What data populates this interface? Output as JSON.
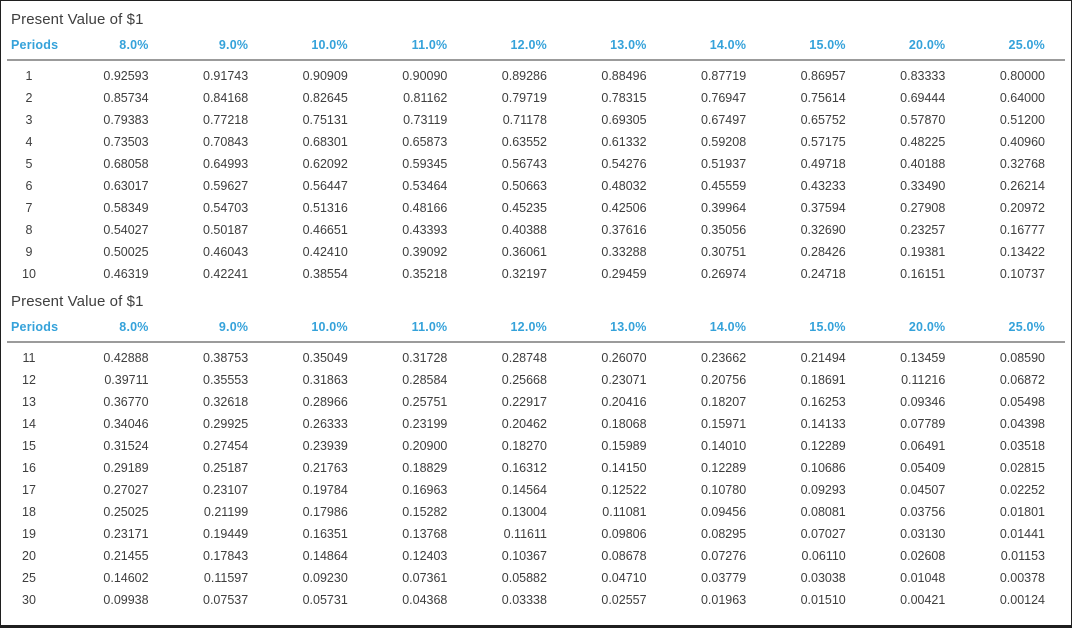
{
  "accent_color": "#35a2da",
  "text_color": "#3e3e3e",
  "tables": [
    {
      "title": "Present Value of $1",
      "columns": [
        "Periods",
        "8.0%",
        "9.0%",
        "10.0%",
        "11.0%",
        "12.0%",
        "13.0%",
        "14.0%",
        "15.0%",
        "20.0%",
        "25.0%"
      ],
      "rows": [
        [
          "1",
          "0.92593",
          "0.91743",
          "0.90909",
          "0.90090",
          "0.89286",
          "0.88496",
          "0.87719",
          "0.86957",
          "0.83333",
          "0.80000"
        ],
        [
          "2",
          "0.85734",
          "0.84168",
          "0.82645",
          "0.81162",
          "0.79719",
          "0.78315",
          "0.76947",
          "0.75614",
          "0.69444",
          "0.64000"
        ],
        [
          "3",
          "0.79383",
          "0.77218",
          "0.75131",
          "0.73119",
          "0.71178",
          "0.69305",
          "0.67497",
          "0.65752",
          "0.57870",
          "0.51200"
        ],
        [
          "4",
          "0.73503",
          "0.70843",
          "0.68301",
          "0.65873",
          "0.63552",
          "0.61332",
          "0.59208",
          "0.57175",
          "0.48225",
          "0.40960"
        ],
        [
          "5",
          "0.68058",
          "0.64993",
          "0.62092",
          "0.59345",
          "0.56743",
          "0.54276",
          "0.51937",
          "0.49718",
          "0.40188",
          "0.32768"
        ],
        [
          "6",
          "0.63017",
          "0.59627",
          "0.56447",
          "0.53464",
          "0.50663",
          "0.48032",
          "0.45559",
          "0.43233",
          "0.33490",
          "0.26214"
        ],
        [
          "7",
          "0.58349",
          "0.54703",
          "0.51316",
          "0.48166",
          "0.45235",
          "0.42506",
          "0.39964",
          "0.37594",
          "0.27908",
          "0.20972"
        ],
        [
          "8",
          "0.54027",
          "0.50187",
          "0.46651",
          "0.43393",
          "0.40388",
          "0.37616",
          "0.35056",
          "0.32690",
          "0.23257",
          "0.16777"
        ],
        [
          "9",
          "0.50025",
          "0.46043",
          "0.42410",
          "0.39092",
          "0.36061",
          "0.33288",
          "0.30751",
          "0.28426",
          "0.19381",
          "0.13422"
        ],
        [
          "10",
          "0.46319",
          "0.42241",
          "0.38554",
          "0.35218",
          "0.32197",
          "0.29459",
          "0.26974",
          "0.24718",
          "0.16151",
          "0.10737"
        ]
      ]
    },
    {
      "title": "Present Value of $1",
      "columns": [
        "Periods",
        "8.0%",
        "9.0%",
        "10.0%",
        "11.0%",
        "12.0%",
        "13.0%",
        "14.0%",
        "15.0%",
        "20.0%",
        "25.0%"
      ],
      "rows": [
        [
          "11",
          "0.42888",
          "0.38753",
          "0.35049",
          "0.31728",
          "0.28748",
          "0.26070",
          "0.23662",
          "0.21494",
          "0.13459",
          "0.08590"
        ],
        [
          "12",
          "0.39711",
          "0.35553",
          "0.31863",
          "0.28584",
          "0.25668",
          "0.23071",
          "0.20756",
          "0.18691",
          "0.11216",
          "0.06872"
        ],
        [
          "13",
          "0.36770",
          "0.32618",
          "0.28966",
          "0.25751",
          "0.22917",
          "0.20416",
          "0.18207",
          "0.16253",
          "0.09346",
          "0.05498"
        ],
        [
          "14",
          "0.34046",
          "0.29925",
          "0.26333",
          "0.23199",
          "0.20462",
          "0.18068",
          "0.15971",
          "0.14133",
          "0.07789",
          "0.04398"
        ],
        [
          "15",
          "0.31524",
          "0.27454",
          "0.23939",
          "0.20900",
          "0.18270",
          "0.15989",
          "0.14010",
          "0.12289",
          "0.06491",
          "0.03518"
        ],
        [
          "16",
          "0.29189",
          "0.25187",
          "0.21763",
          "0.18829",
          "0.16312",
          "0.14150",
          "0.12289",
          "0.10686",
          "0.05409",
          "0.02815"
        ],
        [
          "17",
          "0.27027",
          "0.23107",
          "0.19784",
          "0.16963",
          "0.14564",
          "0.12522",
          "0.10780",
          "0.09293",
          "0.04507",
          "0.02252"
        ],
        [
          "18",
          "0.25025",
          "0.21199",
          "0.17986",
          "0.15282",
          "0.13004",
          "0.11081",
          "0.09456",
          "0.08081",
          "0.03756",
          "0.01801"
        ],
        [
          "19",
          "0.23171",
          "0.19449",
          "0.16351",
          "0.13768",
          "0.11611",
          "0.09806",
          "0.08295",
          "0.07027",
          "0.03130",
          "0.01441"
        ],
        [
          "20",
          "0.21455",
          "0.17843",
          "0.14864",
          "0.12403",
          "0.10367",
          "0.08678",
          "0.07276",
          "0.06110",
          "0.02608",
          "0.01153"
        ],
        [
          "25",
          "0.14602",
          "0.11597",
          "0.09230",
          "0.07361",
          "0.05882",
          "0.04710",
          "0.03779",
          "0.03038",
          "0.01048",
          "0.00378"
        ],
        [
          "30",
          "0.09938",
          "0.07537",
          "0.05731",
          "0.04368",
          "0.03338",
          "0.02557",
          "0.01963",
          "0.01510",
          "0.00421",
          "0.00124"
        ]
      ]
    }
  ]
}
